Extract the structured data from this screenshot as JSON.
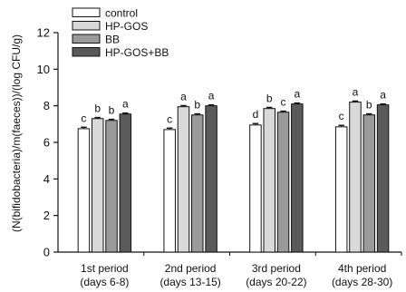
{
  "chart_data": {
    "type": "bar",
    "ylabel": "(N(bifidobacteria)/m(faeces))/(log CFU/g)",
    "ylim": [
      0,
      12
    ],
    "yticks": [
      0,
      2,
      4,
      6,
      8,
      10,
      12
    ],
    "grid": false,
    "legend_position": "top-left",
    "categories": [
      {
        "line1": "1st period",
        "line2": "(days 6-8)"
      },
      {
        "line1": "2nd period",
        "line2": "(days 13-15)"
      },
      {
        "line1": "3rd period",
        "line2": "(days 20-22)"
      },
      {
        "line1": "4th period",
        "line2": "(days 28-30)"
      }
    ],
    "series": [
      {
        "name": "control",
        "color": "#ffffff",
        "values": [
          6.75,
          6.7,
          6.95,
          6.85
        ],
        "errors": [
          0.08,
          0.08,
          0.08,
          0.08
        ],
        "letters": [
          "c",
          "c",
          "d",
          "c"
        ]
      },
      {
        "name": "HP-GOS",
        "color": "#d9d9d9",
        "values": [
          7.3,
          7.95,
          7.85,
          8.2
        ],
        "errors": [
          0.06,
          0.06,
          0.06,
          0.06
        ],
        "letters": [
          "b",
          "a",
          "b",
          "a"
        ]
      },
      {
        "name": "BB",
        "color": "#9a9a9a",
        "values": [
          7.2,
          7.5,
          7.65,
          7.5
        ],
        "errors": [
          0.06,
          0.06,
          0.06,
          0.06
        ],
        "letters": [
          "b",
          "b",
          "c",
          "b"
        ]
      },
      {
        "name": "HP-GOS+BB",
        "color": "#5a5a5a",
        "values": [
          7.55,
          8.0,
          8.1,
          8.05
        ],
        "errors": [
          0.05,
          0.05,
          0.05,
          0.05
        ],
        "letters": [
          "a",
          "a",
          "a",
          "a"
        ]
      }
    ]
  }
}
